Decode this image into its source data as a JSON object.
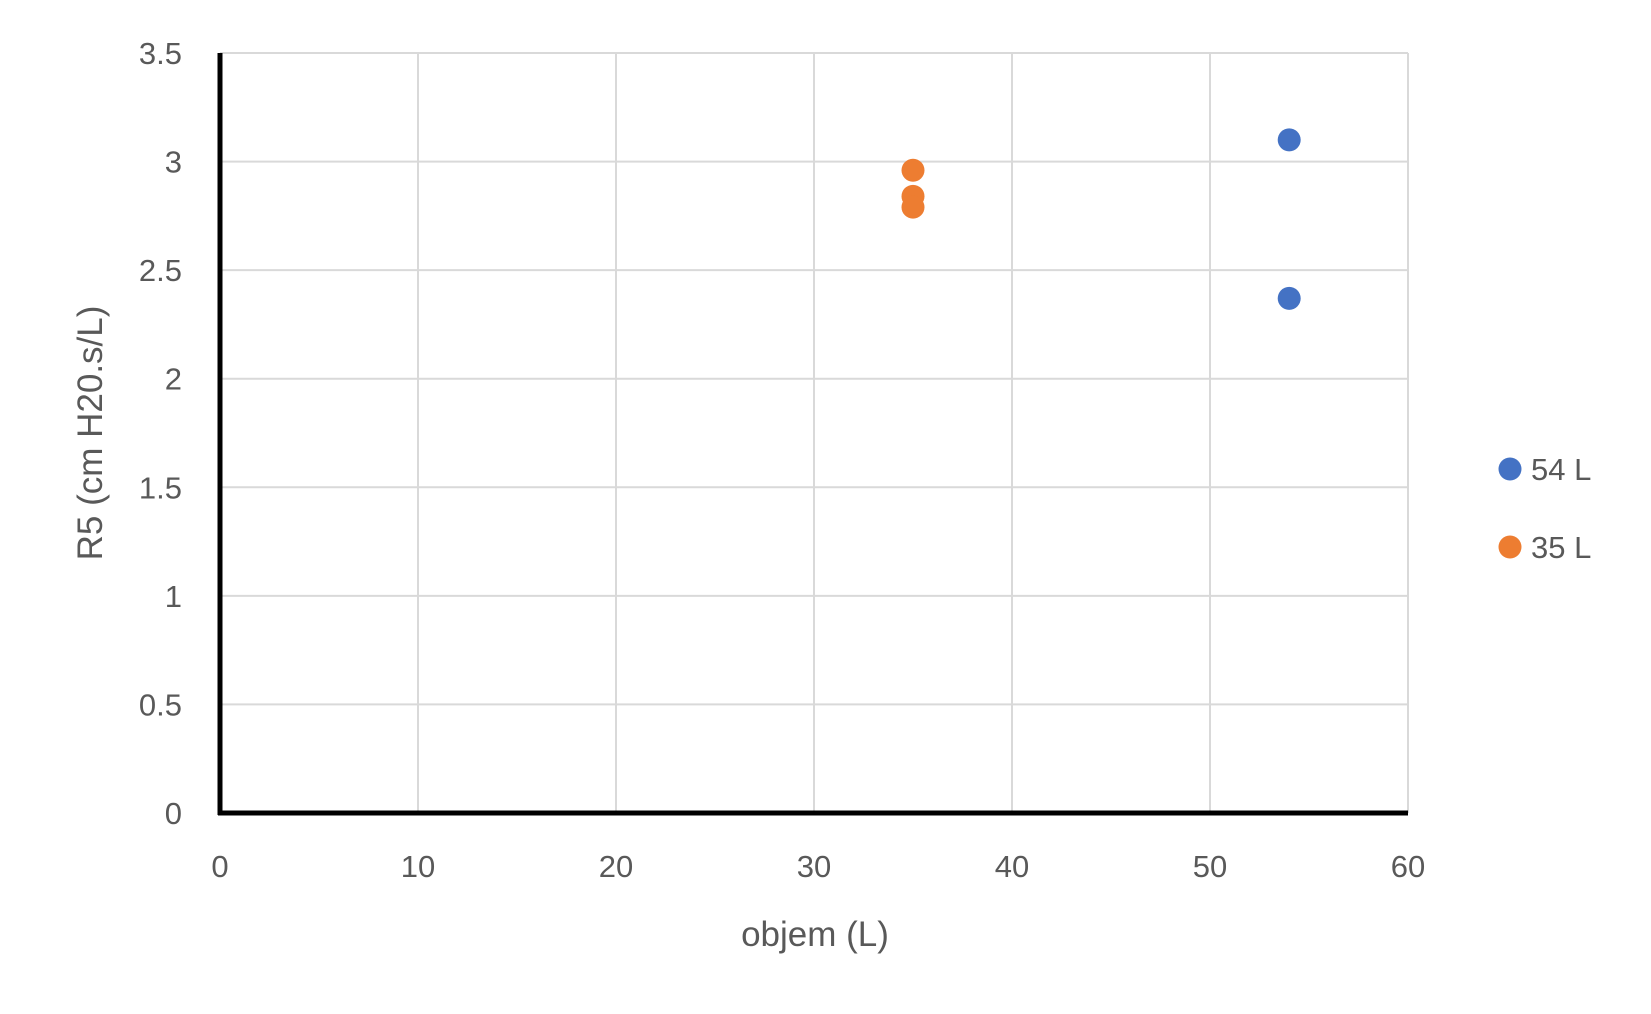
{
  "chart_data": {
    "type": "scatter",
    "title": "",
    "xlabel": "objem (L)",
    "ylabel": "R5 (cm H20.s/L)",
    "xlim": [
      0,
      60
    ],
    "ylim": [
      0,
      3.5
    ],
    "x_ticks": [
      "0",
      "10",
      "20",
      "30",
      "40",
      "50",
      "60"
    ],
    "y_ticks": [
      "0",
      "0.5",
      "1",
      "1.5",
      "2",
      "2.5",
      "3",
      "3.5"
    ],
    "grid": true,
    "legend_position": "right",
    "series": [
      {
        "name": "54 L",
        "color": "#4472C4",
        "points": [
          {
            "x": 54,
            "y": 3.1
          },
          {
            "x": 54,
            "y": 2.37
          }
        ]
      },
      {
        "name": "35 L",
        "color": "#ED7D31",
        "points": [
          {
            "x": 35,
            "y": 2.96
          },
          {
            "x": 35,
            "y": 2.84
          },
          {
            "x": 35,
            "y": 2.79
          }
        ]
      }
    ]
  }
}
